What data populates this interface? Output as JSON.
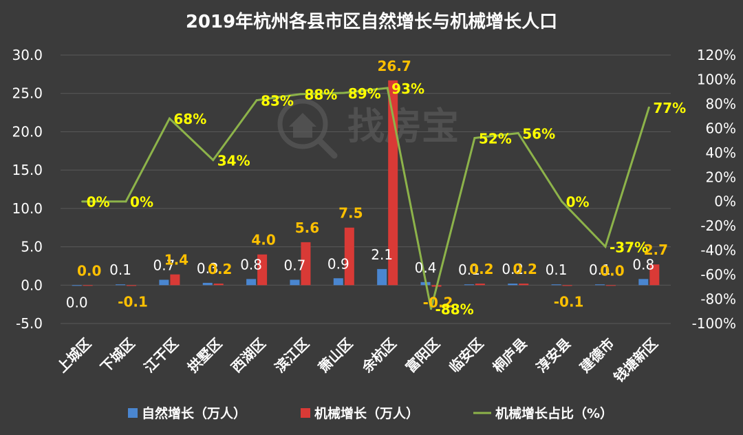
{
  "chart_data": {
    "type": "bar",
    "title": "2019年杭州各县市区自然增长与机械增长人口",
    "categories": [
      "上城区",
      "下城区",
      "江干区",
      "拱墅区",
      "西湖区",
      "滨江区",
      "萧山区",
      "余杭区",
      "富阳区",
      "临安区",
      "桐庐县",
      "淳安县",
      "建德市",
      "钱塘新区"
    ],
    "series": [
      {
        "name": "自然增长（万人）",
        "type": "bar",
        "axis": "left",
        "color": "#4a86d0",
        "values": [
          0.0,
          0.1,
          0.7,
          0.3,
          0.8,
          0.7,
          0.9,
          2.1,
          0.4,
          0.1,
          0.2,
          0.1,
          0.1,
          0.8
        ],
        "labels": [
          "0.0",
          "0.1",
          "0.7",
          "0.3",
          "0.8",
          "0.7",
          "0.9",
          "2.1",
          "0.4",
          "0.1",
          "0.2",
          "0.1",
          "0.1",
          "0.8"
        ]
      },
      {
        "name": "机械增长（万人）",
        "type": "bar",
        "axis": "left",
        "color": "#d93a36",
        "values": [
          0.0,
          -0.1,
          1.4,
          0.2,
          4.0,
          5.6,
          7.5,
          26.7,
          -0.2,
          0.2,
          0.2,
          -0.1,
          0.0,
          2.7
        ],
        "labels": [
          "0.0",
          "-0.1",
          "1.4",
          "0.2",
          "4.0",
          "5.6",
          "7.5",
          "26.7",
          "-0.2",
          "0.2",
          "0.2",
          "-0.1",
          "0.0",
          "2.7"
        ]
      },
      {
        "name": "机械增长占比（%）",
        "type": "line",
        "axis": "right",
        "color": "#8db34a",
        "values": [
          0,
          0,
          68,
          34,
          83,
          88,
          89,
          93,
          -88,
          52,
          56,
          0,
          -37,
          77
        ],
        "labels": [
          "0%",
          "0%",
          "68%",
          "34%",
          "83%",
          "88%",
          "89%",
          "93%",
          "-88%",
          "52%",
          "56%",
          "0%",
          "-37%",
          "77%"
        ]
      }
    ],
    "y_left": {
      "min": -5,
      "max": 30,
      "ticks": [
        -5,
        0,
        5,
        10,
        15,
        20,
        25,
        30
      ],
      "tick_labels": [
        "-5.0",
        "0.0",
        "5.0",
        "10.0",
        "15.0",
        "20.0",
        "25.0",
        "30.0"
      ]
    },
    "y_right": {
      "min": -100,
      "max": 120,
      "ticks": [
        -100,
        -80,
        -60,
        -40,
        -20,
        0,
        20,
        40,
        60,
        80,
        100,
        120
      ],
      "tick_labels": [
        "-100%",
        "-80%",
        "-60%",
        "-40%",
        "-20%",
        "0%",
        "20%",
        "40%",
        "60%",
        "80%",
        "100%",
        "120%"
      ]
    },
    "grid": true,
    "legend_position": "bottom",
    "colors": {
      "background": "#3b3b3b",
      "nat_label": "#ffffff",
      "mech_label": "#ffc000",
      "share_label": "#ffff00"
    }
  },
  "watermark": {
    "text": "找房宝",
    "icon": "house-magnifier-icon"
  }
}
